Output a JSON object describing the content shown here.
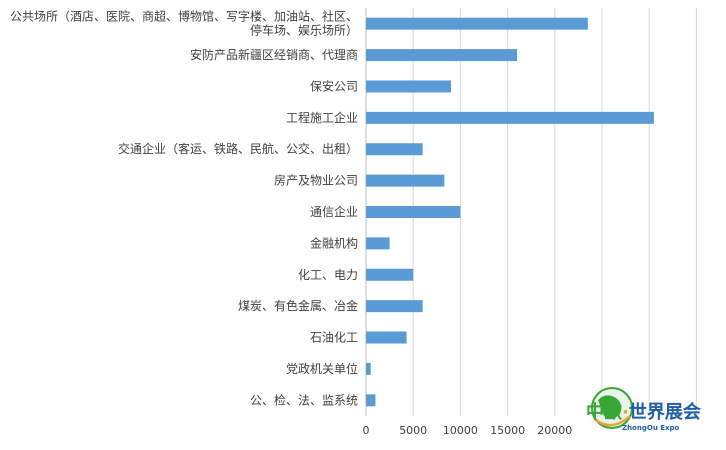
{
  "chart_data": {
    "type": "bar",
    "orientation": "horizontal",
    "categories": [
      "公共场所（酒店、医院、商超、博物馆、写字楼、加油站、社区、停车场、娱乐场所）",
      "安防产品新疆区经销商、代理商",
      "保安公司",
      "工程施工企业",
      "交通企业（客运、铁路、民航、公交、出租）",
      "房产及物业公司",
      "通信企业",
      "金融机构",
      "化工、电力",
      "煤炭、有色金属、冶金",
      "石油化工",
      "党政机关单位",
      "公、检、法、监系统"
    ],
    "category_lines": [
      [
        "公共场所（酒店、医院、商超、博物馆、写字楼、加油站、社区、",
        "停车场、娱乐场所）"
      ],
      [
        "安防产品新疆区经销商、代理商"
      ],
      [
        "保安公司"
      ],
      [
        "工程施工企业"
      ],
      [
        "交通企业（客运、铁路、民航、公交、出租）"
      ],
      [
        "房产及物业公司"
      ],
      [
        "通信企业"
      ],
      [
        "金融机构"
      ],
      [
        "化工、电力"
      ],
      [
        "煤炭、有色金属、冶金"
      ],
      [
        "石油化工"
      ],
      [
        "党政机关单位"
      ],
      [
        "公、检、法、监系统"
      ]
    ],
    "values": [
      23500,
      16000,
      9000,
      30500,
      6000,
      8300,
      10000,
      2500,
      5000,
      6000,
      4300,
      500,
      1000
    ],
    "xlim": [
      0,
      35000
    ],
    "xticks": [
      0,
      5000,
      10000,
      15000,
      20000
    ],
    "bar_color": "#5b9bd5",
    "grid": true,
    "title": "",
    "xlabel": "",
    "ylabel": ""
  },
  "logo": {
    "text_cn": "中欧·世界展会",
    "text_en": "ZhongOu Expo",
    "colors": {
      "green": "#3aa635",
      "blue": "#1e5fa8",
      "orange": "#e8a33a"
    }
  }
}
